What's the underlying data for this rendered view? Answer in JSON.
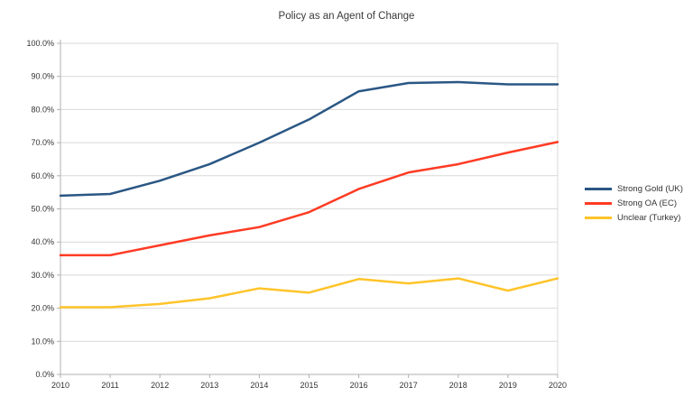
{
  "chart_data": {
    "type": "line",
    "title": "Policy as an Agent of Change",
    "xlabel": "",
    "ylabel": "",
    "categories": [
      "2010",
      "2011",
      "2012",
      "2013",
      "2014",
      "2015",
      "2016",
      "2017",
      "2018",
      "2019",
      "2020"
    ],
    "series": [
      {
        "name": "Strong Gold (UK)",
        "color": "#2A5784",
        "values": [
          54.0,
          54.5,
          58.5,
          63.5,
          70.0,
          77.0,
          85.5,
          88.0,
          88.3,
          87.6,
          87.6
        ]
      },
      {
        "name": "Strong OA (EC)",
        "color": "#FF3B24",
        "values": [
          36.0,
          36.0,
          39.0,
          42.0,
          44.5,
          49.0,
          56.0,
          61.0,
          63.5,
          67.0,
          70.2
        ]
      },
      {
        "name": "Unclear (Turkey)",
        "color": "#FFC42A",
        "values": [
          20.3,
          20.3,
          21.3,
          23.0,
          26.0,
          24.7,
          28.8,
          27.5,
          29.0,
          25.3,
          29.0
        ]
      }
    ],
    "ylim": [
      0,
      100
    ],
    "y_tick_values": [
      0,
      10,
      20,
      30,
      40,
      50,
      60,
      70,
      80,
      90,
      100
    ],
    "y_tick_labels": [
      "0.0%",
      "10.0%",
      "20.0%",
      "30.0%",
      "40.0%",
      "50.0%",
      "60.0%",
      "70.0%",
      "80.0%",
      "90.0%",
      "100.0%"
    ],
    "grid": true,
    "legend_position": "right"
  },
  "colors": {
    "background": "#ffffff",
    "grid": "#d9d9d9",
    "axis": "#b0b0b0",
    "text": "#333333"
  }
}
